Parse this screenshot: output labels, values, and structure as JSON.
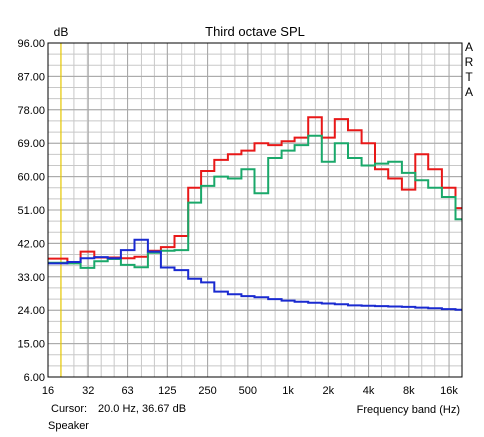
{
  "chart_data": {
    "type": "line",
    "title": "Third octave SPL",
    "ylabel": "dB",
    "xlabel": "Frequency band (Hz)",
    "y_scale": "linear",
    "x_scale": "log",
    "ylim": [
      6,
      96
    ],
    "xlim": [
      16,
      20000
    ],
    "y_ticks": [
      "96.00",
      "87.00",
      "78.00",
      "69.00",
      "60.00",
      "51.00",
      "42.00",
      "33.00",
      "24.00",
      "15.00",
      "6.00"
    ],
    "y_tick_values": [
      96,
      87,
      78,
      69,
      60,
      51,
      42,
      33,
      24,
      15,
      6
    ],
    "x_ticks": [
      "16",
      "32",
      "63",
      "125",
      "250",
      "500",
      "1k",
      "2k",
      "4k",
      "8k",
      "16k"
    ],
    "x_tick_values": [
      16,
      32,
      63,
      125,
      250,
      500,
      1000,
      2000,
      4000,
      8000,
      16000
    ],
    "grid": true,
    "cursor_x": 20,
    "brand": "ARTA",
    "bands": [
      20,
      25,
      31.5,
      40,
      50,
      63,
      80,
      100,
      125,
      160,
      200,
      250,
      315,
      400,
      500,
      630,
      800,
      1000,
      1250,
      1600,
      2000,
      2500,
      3150,
      4000,
      5000,
      6300,
      8000,
      10000,
      12500,
      16000,
      20000
    ],
    "series": [
      {
        "color": "#e81818",
        "values": [
          37.9,
          37.9,
          37.0,
          39.8,
          38.2,
          38.2,
          38.0,
          38.4,
          40.0,
          41.0,
          44.0,
          57.0,
          61.5,
          64.5,
          66.0,
          67.0,
          69.0,
          68.5,
          69.5,
          70.5,
          76.0,
          70.5,
          75.5,
          72.5,
          69.0,
          62.0,
          59.5,
          56.5,
          66.0,
          62.0,
          57.0,
          51.5
        ]
      },
      {
        "color": "#1aa86a",
        "values": [
          36.8,
          36.8,
          36.6,
          35.4,
          37.2,
          37.8,
          36.2,
          35.6,
          39.5,
          40.0,
          40.2,
          53.0,
          57.5,
          60.0,
          59.5,
          62.0,
          55.5,
          65.0,
          67.0,
          68.5,
          71.0,
          64.0,
          69.0,
          65.0,
          63.0,
          63.5,
          64.0,
          61.0,
          59.0,
          57.0,
          54.5,
          48.5
        ]
      },
      {
        "color": "#1a2ad0",
        "values": [
          36.6,
          36.6,
          37.0,
          38.0,
          38.3,
          38.0,
          40.2,
          43.0,
          39.8,
          35.5,
          34.8,
          32.5,
          31.5,
          29.0,
          28.3,
          27.8,
          27.5,
          27.0,
          26.6,
          26.3,
          26.0,
          25.8,
          25.6,
          25.3,
          25.2,
          25.1,
          25.0,
          24.9,
          24.7,
          24.5,
          24.3,
          24.1
        ]
      }
    ]
  },
  "footer": {
    "cursor_label": "Cursor:",
    "cursor_value": "20.0 Hz, 36.67 dB",
    "channel": "Speaker"
  }
}
